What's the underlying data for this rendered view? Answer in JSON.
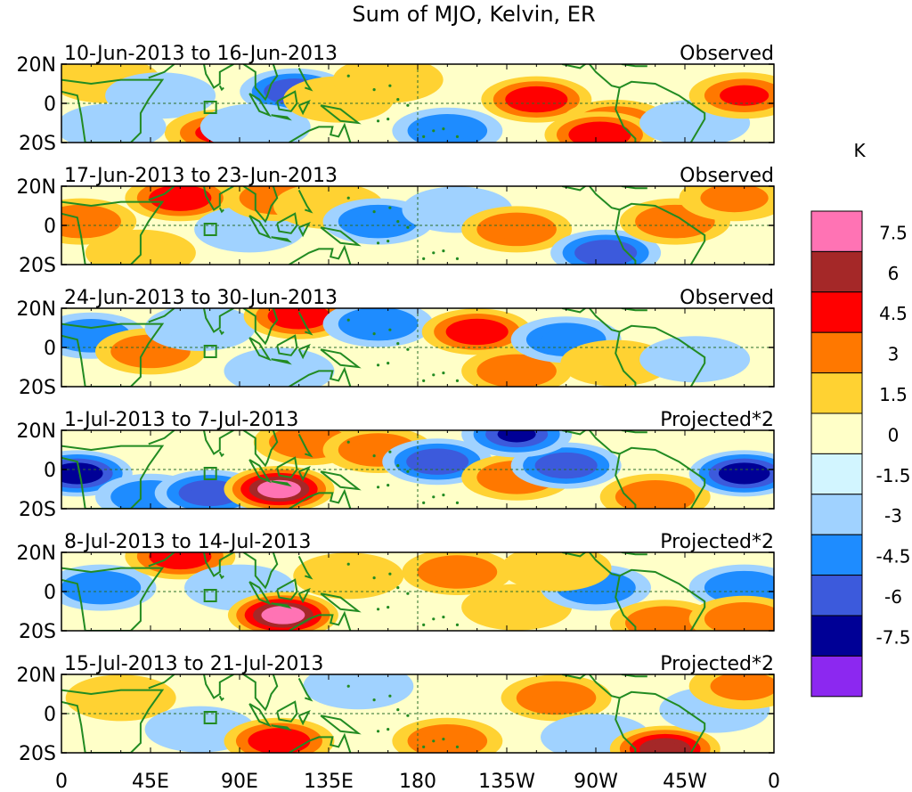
{
  "chart_data": {
    "type": "heatmap",
    "title": "Sum of MJO, Kelvin, ER",
    "lat_ticks": [
      "20N",
      "0",
      "20S"
    ],
    "lon_ticks": [
      "0",
      "45E",
      "90E",
      "135E",
      "180",
      "135W",
      "90W",
      "45W",
      "0"
    ],
    "lon_range": [
      0,
      360
    ],
    "lat_range": [
      -20,
      20
    ],
    "colorbar": {
      "unit": "K",
      "levels": [
        "7.5",
        "6",
        "4.5",
        "3",
        "1.5",
        "0",
        "-1.5",
        "-3",
        "-4.5",
        "-6",
        "-7.5"
      ],
      "colors": [
        "#ff73b4",
        "#a52828",
        "#ff0000",
        "#ff7800",
        "#ffd232",
        "#ffffc8",
        "#d2f5ff",
        "#a0d2ff",
        "#1e8cff",
        "#3c5adc",
        "#000096",
        "#8c28f0"
      ]
    },
    "panels": [
      {
        "date_range": "10-Jun-2013 to 16-Jun-2013",
        "label": "Observed",
        "blobs": [
          {
            "lon": 22,
            "lat": 12,
            "v": 2.2
          },
          {
            "lon": 50,
            "lat": 4,
            "v": -2.4
          },
          {
            "lon": 80,
            "lat": -15,
            "v": 4.5
          },
          {
            "lon": 118,
            "lat": 6,
            "v": -4.8
          },
          {
            "lon": 98,
            "lat": -12,
            "v": -1.8
          },
          {
            "lon": 140,
            "lat": 2,
            "v": 1.6
          },
          {
            "lon": 165,
            "lat": 12,
            "v": 2.4
          },
          {
            "lon": 195,
            "lat": -14,
            "v": -3.4
          },
          {
            "lon": 240,
            "lat": 2,
            "v": 5.6
          },
          {
            "lon": 280,
            "lat": -10,
            "v": 3.2
          },
          {
            "lon": 272,
            "lat": -16,
            "v": 5.0
          },
          {
            "lon": 320,
            "lat": -10,
            "v": -2.5
          },
          {
            "lon": 345,
            "lat": 4,
            "v": 4.5
          },
          {
            "lon": 25,
            "lat": -12,
            "v": -1.6
          }
        ]
      },
      {
        "date_range": "17-Jun-2013 to 23-Jun-2013",
        "label": "Observed",
        "blobs": [
          {
            "lon": 10,
            "lat": 2,
            "v": 4.4
          },
          {
            "lon": 60,
            "lat": 14,
            "v": 4.6
          },
          {
            "lon": 95,
            "lat": -2,
            "v": -2.0
          },
          {
            "lon": 110,
            "lat": 14,
            "v": 3.2
          },
          {
            "lon": 135,
            "lat": 10,
            "v": 2.0
          },
          {
            "lon": 160,
            "lat": 2,
            "v": -4.2
          },
          {
            "lon": 200,
            "lat": 8,
            "v": -2.4
          },
          {
            "lon": 230,
            "lat": -2,
            "v": 3.6
          },
          {
            "lon": 275,
            "lat": -14,
            "v": -5.2
          },
          {
            "lon": 310,
            "lat": 2,
            "v": 3.8
          },
          {
            "lon": 340,
            "lat": 14,
            "v": 3.0
          },
          {
            "lon": 40,
            "lat": -14,
            "v": 2.4
          }
        ]
      },
      {
        "date_range": "24-Jun-2013 to 30-Jun-2013",
        "label": "Observed",
        "blobs": [
          {
            "lon": 15,
            "lat": 6,
            "v": -3.2
          },
          {
            "lon": 45,
            "lat": -2,
            "v": 3.8
          },
          {
            "lon": 70,
            "lat": 10,
            "v": -1.6
          },
          {
            "lon": 120,
            "lat": 16,
            "v": 4.8
          },
          {
            "lon": 160,
            "lat": 12,
            "v": -3.2
          },
          {
            "lon": 210,
            "lat": 8,
            "v": 4.6
          },
          {
            "lon": 230,
            "lat": -12,
            "v": 3.6
          },
          {
            "lon": 255,
            "lat": 4,
            "v": -4.4
          },
          {
            "lon": 280,
            "lat": -8,
            "v": 2.4
          },
          {
            "lon": 320,
            "lat": -6,
            "v": -2.8
          },
          {
            "lon": 110,
            "lat": -12,
            "v": -1.8
          }
        ]
      },
      {
        "date_range": "1-Jul-2013 to 7-Jul-2013",
        "label": "Projected*2",
        "blobs": [
          {
            "lon": 8,
            "lat": -2,
            "v": -6.2
          },
          {
            "lon": 45,
            "lat": -14,
            "v": -4.0
          },
          {
            "lon": 75,
            "lat": -12,
            "v": -5.6
          },
          {
            "lon": 110,
            "lat": -10,
            "v": 7.8
          },
          {
            "lon": 125,
            "lat": 14,
            "v": 3.4
          },
          {
            "lon": 160,
            "lat": 10,
            "v": 3.2
          },
          {
            "lon": 190,
            "lat": 4,
            "v": -4.6
          },
          {
            "lon": 230,
            "lat": -4,
            "v": 3.2
          },
          {
            "lon": 255,
            "lat": 2,
            "v": -5.0
          },
          {
            "lon": 300,
            "lat": -14,
            "v": 4.0
          },
          {
            "lon": 345,
            "lat": -2,
            "v": -7.0
          },
          {
            "lon": 230,
            "lat": 18,
            "v": -6.0
          }
        ]
      },
      {
        "date_range": "8-Jul-2013 to 14-Jul-2013",
        "label": "Projected*2",
        "blobs": [
          {
            "lon": 20,
            "lat": 2,
            "v": -3.4
          },
          {
            "lon": 60,
            "lat": 18,
            "v": 4.6
          },
          {
            "lon": 90,
            "lat": 2,
            "v": -2.4
          },
          {
            "lon": 112,
            "lat": -12,
            "v": 7.8
          },
          {
            "lon": 145,
            "lat": 8,
            "v": 2.6
          },
          {
            "lon": 200,
            "lat": 10,
            "v": 3.8
          },
          {
            "lon": 230,
            "lat": -8,
            "v": 2.8
          },
          {
            "lon": 270,
            "lat": 2,
            "v": -3.6
          },
          {
            "lon": 305,
            "lat": -16,
            "v": 3.6
          },
          {
            "lon": 345,
            "lat": 2,
            "v": -4.2
          },
          {
            "lon": 345,
            "lat": -14,
            "v": 4.2
          },
          {
            "lon": 250,
            "lat": 12,
            "v": 2.4
          }
        ]
      },
      {
        "date_range": "15-Jul-2013 to 21-Jul-2013",
        "label": "Projected*2",
        "blobs": [
          {
            "lon": 30,
            "lat": 8,
            "v": 2.4
          },
          {
            "lon": 70,
            "lat": -8,
            "v": -2.2
          },
          {
            "lon": 110,
            "lat": -14,
            "v": 4.6
          },
          {
            "lon": 150,
            "lat": 14,
            "v": -2.2
          },
          {
            "lon": 195,
            "lat": -14,
            "v": 3.2
          },
          {
            "lon": 250,
            "lat": 8,
            "v": 4.0
          },
          {
            "lon": 270,
            "lat": -12,
            "v": -2.8
          },
          {
            "lon": 305,
            "lat": -18,
            "v": 6.2
          },
          {
            "lon": 330,
            "lat": 2,
            "v": -2.6
          },
          {
            "lon": 345,
            "lat": 14,
            "v": 3.0
          }
        ]
      }
    ]
  }
}
